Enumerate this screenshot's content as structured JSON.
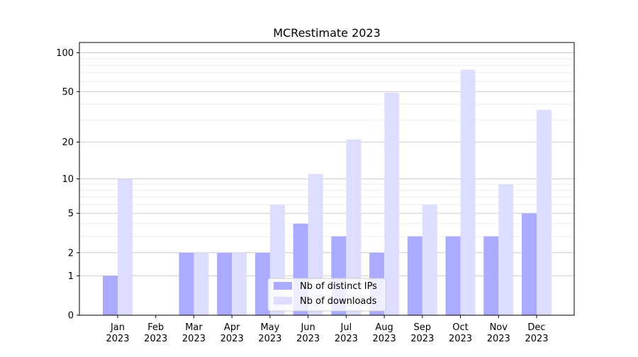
{
  "chart_data": {
    "type": "bar",
    "title": "MCRestimate 2023",
    "xlabel": "",
    "ylabel": "",
    "y_scale": "symlog",
    "ylim": [
      0,
      120
    ],
    "y_ticks": [
      0,
      1,
      2,
      5,
      10,
      20,
      50,
      100
    ],
    "y_tick_labels": [
      "0",
      "1",
      "2",
      "5",
      "10",
      "20",
      "50",
      "100"
    ],
    "grid": true,
    "legend_position": "bottom-center",
    "categories": [
      "Jan\n2023",
      "Feb\n2023",
      "Mar\n2023",
      "Apr\n2023",
      "May\n2023",
      "Jun\n2023",
      "Jul\n2023",
      "Aug\n2023",
      "Sep\n2023",
      "Oct\n2023",
      "Nov\n2023",
      "Dec\n2023"
    ],
    "series": [
      {
        "name": "Nb of distinct IPs",
        "color": "#aaaaff",
        "values": [
          1,
          0,
          2,
          2,
          2,
          4,
          3,
          2,
          3,
          3,
          3,
          5
        ]
      },
      {
        "name": "Nb of downloads",
        "color": "#ddddff",
        "values": [
          10,
          0,
          2,
          2,
          6,
          11,
          21,
          49,
          6,
          74,
          9,
          36
        ]
      }
    ]
  }
}
